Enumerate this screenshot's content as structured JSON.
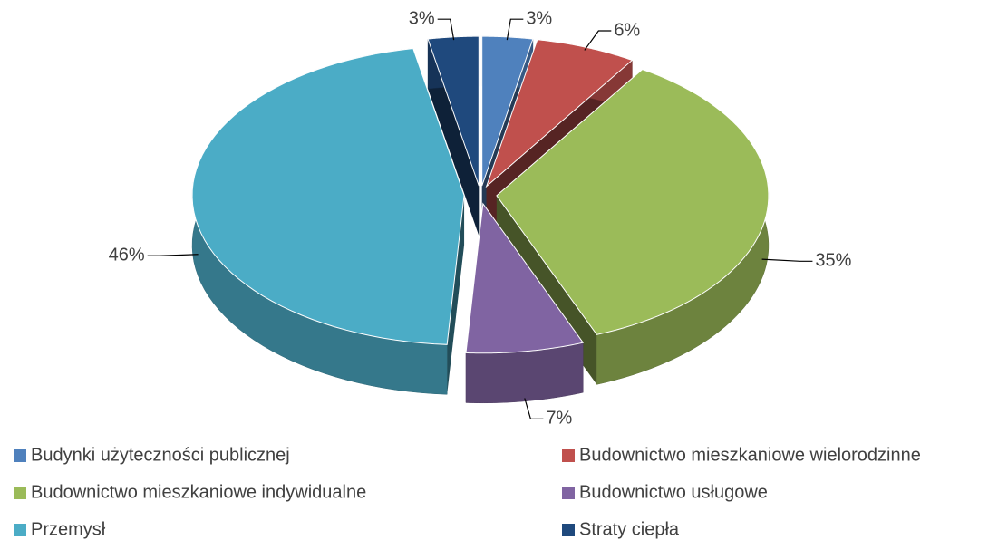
{
  "chart_data": {
    "type": "pie",
    "categories": [
      "Budynki użyteczności publicznej",
      "Budownictwo mieszkaniowe wielorodzinne",
      "Budownictwo mieszkaniowe indywidualne",
      "Budownictwo usługowe",
      "Przemysł",
      "Straty ciepła"
    ],
    "values": [
      3,
      6,
      35,
      7,
      46,
      3
    ],
    "value_labels": [
      "3%",
      "6%",
      "35%",
      "7%",
      "46%",
      "3%"
    ],
    "colors": [
      "#4f81bd",
      "#c0504d",
      "#9bbb59",
      "#8064a2",
      "#4bacc6",
      "#1f497d"
    ],
    "legend": "bottom"
  }
}
